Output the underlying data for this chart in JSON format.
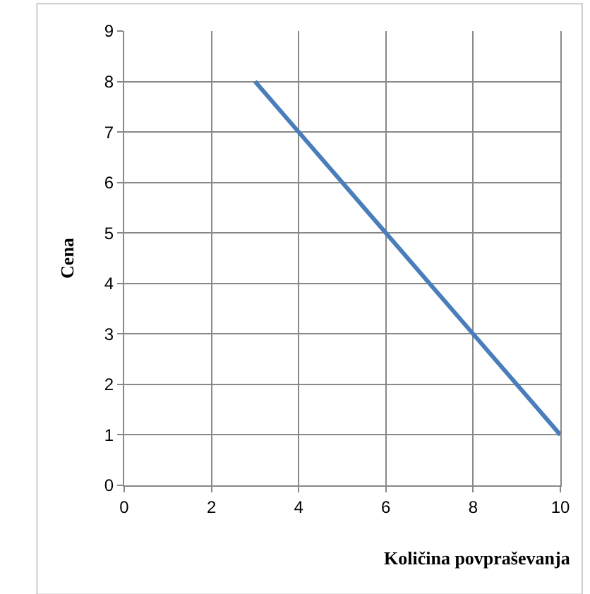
{
  "chart_data": {
    "type": "line",
    "xlabel": "Količina povpraševanja",
    "ylabel": "Cena",
    "x": [
      3,
      4,
      6,
      8,
      10
    ],
    "series": [
      {
        "color": "#4a7ebb",
        "values": [
          8,
          7,
          5,
          3,
          1
        ]
      }
    ],
    "xlim": [
      0,
      10
    ],
    "xticks": [
      0,
      2,
      4,
      6,
      8,
      10
    ],
    "ylim": [
      0,
      9
    ],
    "yticks": [
      0,
      1,
      2,
      3,
      4,
      5,
      6,
      7,
      8,
      9
    ],
    "grid": true,
    "legend": false,
    "marker": "none",
    "line_style": "solid"
  }
}
